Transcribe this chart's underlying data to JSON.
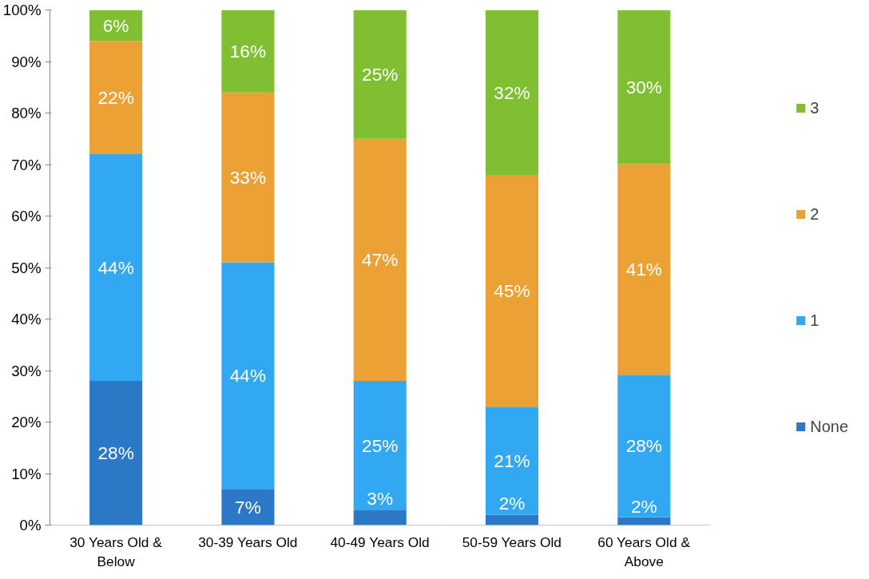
{
  "chart_data": {
    "type": "bar",
    "stacked": true,
    "categories": [
      "30 Years Old & Below",
      "30-39 Years Old",
      "40-49 Years Old",
      "50-59 Years Old",
      "60 Years Old & Above"
    ],
    "series": [
      {
        "name": "None",
        "color": "#2b78c6",
        "values": [
          28,
          7,
          3,
          2,
          1.5
        ],
        "value_labels": [
          "28%",
          "7%",
          "3%",
          "2%",
          "2%"
        ]
      },
      {
        "name": "1",
        "color": "#33a8f2",
        "values": [
          44,
          44,
          25,
          21,
          27.7
        ],
        "value_labels": [
          "44%",
          "44%",
          "25%",
          "21%",
          "28%"
        ]
      },
      {
        "name": "2",
        "color": "#eca134",
        "values": [
          22,
          33,
          47,
          45,
          40.9
        ],
        "value_labels": [
          "22%",
          "33%",
          "47%",
          "45%",
          "41%"
        ]
      },
      {
        "name": "3",
        "color": "#7fbf31",
        "values": [
          6,
          16,
          25,
          32,
          29.9
        ],
        "value_labels": [
          "6%",
          "16%",
          "25%",
          "32%",
          "30%"
        ]
      }
    ],
    "ylim": [
      0,
      100
    ],
    "yticks": [
      {
        "value": 0,
        "label": "0%"
      },
      {
        "value": 10,
        "label": "10%"
      },
      {
        "value": 20,
        "label": "20%"
      },
      {
        "value": 30,
        "label": "30%"
      },
      {
        "value": 40,
        "label": "40%"
      },
      {
        "value": 50,
        "label": "50%"
      },
      {
        "value": 60,
        "label": "60%"
      },
      {
        "value": 70,
        "label": "70%"
      },
      {
        "value": 80,
        "label": "80%"
      },
      {
        "value": 90,
        "label": "90%"
      },
      {
        "value": 100,
        "label": "100%"
      }
    ],
    "grid": false,
    "legend": "right"
  }
}
